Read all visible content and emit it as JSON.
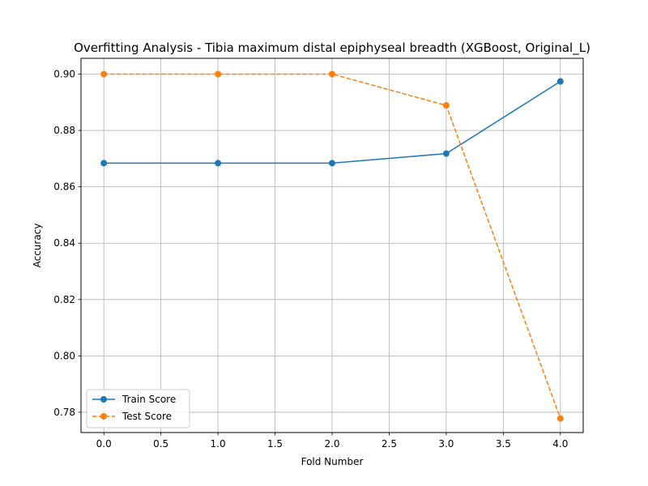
{
  "chart_data": {
    "type": "line",
    "title": "Overfitting Analysis - Tibia maximum distal epiphyseal breadth (XGBoost, Original_L)",
    "xlabel": "Fold Number",
    "ylabel": "Accuracy",
    "x": [
      0,
      1,
      2,
      3,
      4
    ],
    "xlim": [
      -0.2,
      4.2
    ],
    "ylim": [
      0.7728,
      0.9056
    ],
    "xticks": [
      0.0,
      0.5,
      1.0,
      1.5,
      2.0,
      2.5,
      3.0,
      3.5,
      4.0
    ],
    "xtick_labels": [
      "0.0",
      "0.5",
      "1.0",
      "1.5",
      "2.0",
      "2.5",
      "3.0",
      "3.5",
      "4.0"
    ],
    "yticks": [
      0.78,
      0.8,
      0.82,
      0.84,
      0.86,
      0.88,
      0.9
    ],
    "ytick_labels": [
      "0.78",
      "0.80",
      "0.82",
      "0.84",
      "0.86",
      "0.88",
      "0.90"
    ],
    "grid": true,
    "legend_position": "lower-left",
    "series": [
      {
        "name": "Train Score",
        "values": [
          0.8684,
          0.8684,
          0.8684,
          0.8718,
          0.8974
        ],
        "color": "#1f77b4",
        "linestyle": "solid",
        "marker": "circle"
      },
      {
        "name": "Test Score",
        "values": [
          0.9,
          0.9,
          0.9,
          0.8889,
          0.7778
        ],
        "color": "#ff7f0e",
        "linestyle": "dashed",
        "marker": "circle"
      }
    ]
  }
}
